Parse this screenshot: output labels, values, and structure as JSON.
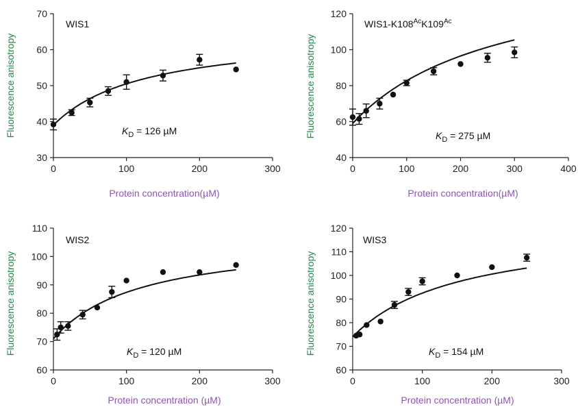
{
  "colors": {
    "ylabel": "#1f8a4c",
    "xlabel": "#8a55b5",
    "marker": "#111111",
    "curve": "#111111"
  },
  "chart_data": [
    {
      "type": "scatter",
      "title": "WIS1",
      "xlabel": "Protein concentration(µM)",
      "ylabel": "Fluorescence anisotropy",
      "xlim": [
        0,
        300
      ],
      "ylim": [
        30,
        70
      ],
      "xticks": [
        "0",
        "100",
        "200",
        "300"
      ],
      "yticks": [
        "30",
        "40",
        "50",
        "60",
        "70"
      ],
      "kd_prefix": "K",
      "kd_sub": "D",
      "kd_value": " = 126 µM",
      "kd": 126,
      "fit": {
        "y0": 39,
        "ymax": 65
      },
      "points": [
        {
          "x": 0,
          "y": 39.2,
          "err": 1.5
        },
        {
          "x": 25,
          "y": 42.5,
          "err": 0.8
        },
        {
          "x": 50,
          "y": 45.3,
          "err": 1.2
        },
        {
          "x": 75,
          "y": 48.5,
          "err": 1.2
        },
        {
          "x": 100,
          "y": 51.0,
          "err": 2.0
        },
        {
          "x": 150,
          "y": 52.8,
          "err": 1.5
        },
        {
          "x": 200,
          "y": 57.2,
          "err": 1.5
        },
        {
          "x": 250,
          "y": 54.5,
          "err": 0
        }
      ]
    },
    {
      "type": "scatter",
      "title": "WIS1-K108",
      "title_sup1": "Ac",
      "title_mid": "K109",
      "title_sup2": "Ac",
      "xlabel": "Protein concentration(µM)",
      "ylabel": "Fluorescence anisotropy",
      "xlim": [
        0,
        400
      ],
      "ylim": [
        40,
        120
      ],
      "xticks": [
        "0",
        "100",
        "200",
        "300",
        "400"
      ],
      "yticks": [
        "40",
        "60",
        "80",
        "100",
        "120"
      ],
      "kd_prefix": "K",
      "kd_sub": "D",
      "kd_value": " = 275 µM",
      "kd": 275,
      "fit": {
        "y0": 59,
        "ymax": 148
      },
      "points": [
        {
          "x": 0,
          "y": 62.5,
          "err": 4.5
        },
        {
          "x": 12,
          "y": 61.5,
          "err": 3.0
        },
        {
          "x": 25,
          "y": 66.0,
          "err": 3.8
        },
        {
          "x": 50,
          "y": 70.0,
          "err": 3.0
        },
        {
          "x": 75,
          "y": 75.0,
          "err": 0
        },
        {
          "x": 100,
          "y": 81.5,
          "err": 1.5
        },
        {
          "x": 150,
          "y": 88.0,
          "err": 2.0
        },
        {
          "x": 200,
          "y": 92.0,
          "err": 0
        },
        {
          "x": 250,
          "y": 95.5,
          "err": 2.5
        },
        {
          "x": 300,
          "y": 98.5,
          "err": 3.0
        }
      ]
    },
    {
      "type": "scatter",
      "title": "WIS2",
      "xlabel": "Protein concentration (µM)",
      "ylabel": "Fluorescence anisotropy",
      "xlim": [
        0,
        300
      ],
      "ylim": [
        60,
        110
      ],
      "xticks": [
        "0",
        "100",
        "200",
        "300"
      ],
      "yticks": [
        "60",
        "70",
        "80",
        "90",
        "100",
        "110"
      ],
      "kd_prefix": "K",
      "kd_sub": "D",
      "kd_value": " = 120 µM",
      "kd": 120,
      "fit": {
        "y0": 71,
        "ymax": 107
      },
      "points": [
        {
          "x": 5,
          "y": 72.5,
          "err": 2.0
        },
        {
          "x": 10,
          "y": 75.0,
          "err": 2.0
        },
        {
          "x": 20,
          "y": 75.5,
          "err": 1.5
        },
        {
          "x": 40,
          "y": 79.5,
          "err": 1.5
        },
        {
          "x": 60,
          "y": 82.0,
          "err": 0
        },
        {
          "x": 80,
          "y": 87.5,
          "err": 2.0
        },
        {
          "x": 100,
          "y": 91.5,
          "err": 0
        },
        {
          "x": 150,
          "y": 94.5,
          "err": 0
        },
        {
          "x": 200,
          "y": 94.5,
          "err": 0
        },
        {
          "x": 250,
          "y": 97.0,
          "err": 0
        }
      ]
    },
    {
      "type": "scatter",
      "title": "WIS3",
      "xlabel": "Protein concentration (µM)",
      "ylabel": "Fluorescence anisotropy",
      "xlim": [
        0,
        300
      ],
      "ylim": [
        60,
        120
      ],
      "xticks": [
        "0",
        "100",
        "200",
        "300"
      ],
      "yticks": [
        "60",
        "70",
        "80",
        "90",
        "100",
        "110",
        "120"
      ],
      "kd_prefix": "K",
      "kd_sub": "D",
      "kd_value": " = 154 µM",
      "kd": 154,
      "fit": {
        "y0": 74,
        "ymax": 121
      },
      "points": [
        {
          "x": 5,
          "y": 74.5,
          "err": 0
        },
        {
          "x": 10,
          "y": 75.0,
          "err": 0
        },
        {
          "x": 20,
          "y": 79.0,
          "err": 0
        },
        {
          "x": 40,
          "y": 80.5,
          "err": 0
        },
        {
          "x": 60,
          "y": 87.5,
          "err": 1.5
        },
        {
          "x": 80,
          "y": 93.0,
          "err": 1.5
        },
        {
          "x": 100,
          "y": 97.5,
          "err": 1.5
        },
        {
          "x": 150,
          "y": 100.0,
          "err": 0
        },
        {
          "x": 200,
          "y": 103.5,
          "err": 0
        },
        {
          "x": 250,
          "y": 107.5,
          "err": 1.5
        }
      ]
    }
  ]
}
